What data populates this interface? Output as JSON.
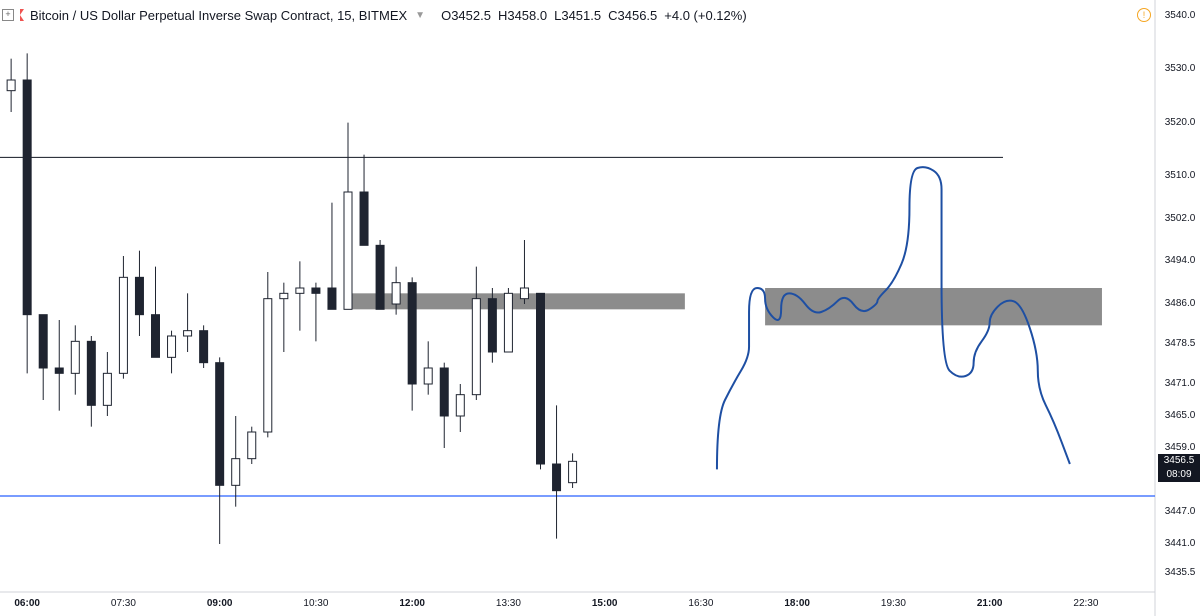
{
  "header": {
    "expand_icon": "plus-square-icon",
    "flag_icon": "red-flag-icon",
    "title": "Bitcoin / US Dollar Perpetual Inverse Swap Contract, 15, BITMEX",
    "dropdown_icon": "chevron-down-icon",
    "open": "O3452.5",
    "high": "H3458.0",
    "low": "L3451.5",
    "close": "C3456.5",
    "change": "+4.0 (+0.12%)",
    "alert_icon": "warning-circle-icon",
    "alert_text": "!"
  },
  "price_axis": {
    "labels": [
      "3540.0",
      "3530.0",
      "3520.0",
      "3510.0",
      "3502.0",
      "3494.0",
      "3486.0",
      "3478.5",
      "3471.0",
      "3465.0",
      "3459.0",
      "3447.0",
      "3441.0",
      "3435.5"
    ],
    "current_price": "3456.5",
    "countdown": "08:09"
  },
  "time_axis": {
    "labels": [
      "06:00",
      "07:30",
      "09:00",
      "10:30",
      "12:00",
      "13:30",
      "15:00",
      "16:30",
      "18:00",
      "19:30",
      "21:00",
      "22:30"
    ],
    "bold": [
      "06:00",
      "09:00",
      "12:00",
      "15:00",
      "18:00",
      "21:00"
    ]
  },
  "colors": {
    "bear": "#1f2430",
    "bull": "#ffffff",
    "wick": "#1f2430",
    "support_line": "#2962ff",
    "resistance_line": "#131722",
    "zone": "#8c8c8c",
    "drawing": "#1e4fa3",
    "accent": "#ef5350"
  },
  "chart_data": {
    "type": "candlestick",
    "symbol": "BITMEX XBTUSD",
    "interval": "15",
    "y_range": [
      3432,
      3543
    ],
    "x_range": [
      "05:00",
      "23:00"
    ],
    "candles": [
      {
        "t": "05:45",
        "o": 3526,
        "h": 3532,
        "l": 3522,
        "c": 3528
      },
      {
        "t": "06:00",
        "o": 3528,
        "h": 3533,
        "l": 3473,
        "c": 3484
      },
      {
        "t": "06:15",
        "o": 3484,
        "h": 3484,
        "l": 3468,
        "c": 3474
      },
      {
        "t": "06:30",
        "o": 3474,
        "h": 3483,
        "l": 3466,
        "c": 3473
      },
      {
        "t": "06:45",
        "o": 3473,
        "h": 3482,
        "l": 3469,
        "c": 3479
      },
      {
        "t": "07:00",
        "o": 3479,
        "h": 3480,
        "l": 3463,
        "c": 3467
      },
      {
        "t": "07:15",
        "o": 3467,
        "h": 3477,
        "l": 3465,
        "c": 3473
      },
      {
        "t": "07:30",
        "o": 3473,
        "h": 3495,
        "l": 3472,
        "c": 3491
      },
      {
        "t": "07:45",
        "o": 3491,
        "h": 3496,
        "l": 3480,
        "c": 3484
      },
      {
        "t": "08:00",
        "o": 3484,
        "h": 3493,
        "l": 3476,
        "c": 3476
      },
      {
        "t": "08:15",
        "o": 3476,
        "h": 3481,
        "l": 3473,
        "c": 3480
      },
      {
        "t": "08:30",
        "o": 3480,
        "h": 3488,
        "l": 3477,
        "c": 3481
      },
      {
        "t": "08:45",
        "o": 3481,
        "h": 3482,
        "l": 3474,
        "c": 3475
      },
      {
        "t": "09:00",
        "o": 3475,
        "h": 3476,
        "l": 3441,
        "c": 3452
      },
      {
        "t": "09:15",
        "o": 3452,
        "h": 3465,
        "l": 3448,
        "c": 3457
      },
      {
        "t": "09:30",
        "o": 3457,
        "h": 3463,
        "l": 3456,
        "c": 3462
      },
      {
        "t": "09:45",
        "o": 3462,
        "h": 3492,
        "l": 3461,
        "c": 3487
      },
      {
        "t": "10:00",
        "o": 3487,
        "h": 3490,
        "l": 3477,
        "c": 3488
      },
      {
        "t": "10:15",
        "o": 3488,
        "h": 3494,
        "l": 3481,
        "c": 3489
      },
      {
        "t": "10:30",
        "o": 3489,
        "h": 3490,
        "l": 3479,
        "c": 3488
      },
      {
        "t": "10:45",
        "o": 3489,
        "h": 3505,
        "l": 3485,
        "c": 3485
      },
      {
        "t": "11:00",
        "o": 3485,
        "h": 3520,
        "l": 3485,
        "c": 3507
      },
      {
        "t": "11:15",
        "o": 3507,
        "h": 3514,
        "l": 3497,
        "c": 3497
      },
      {
        "t": "11:30",
        "o": 3497,
        "h": 3498,
        "l": 3485,
        "c": 3485
      },
      {
        "t": "11:45",
        "o": 3486,
        "h": 3493,
        "l": 3484,
        "c": 3490
      },
      {
        "t": "12:00",
        "o": 3490,
        "h": 3491,
        "l": 3466,
        "c": 3471
      },
      {
        "t": "12:15",
        "o": 3471,
        "h": 3479,
        "l": 3469,
        "c": 3474
      },
      {
        "t": "12:30",
        "o": 3474,
        "h": 3475,
        "l": 3459,
        "c": 3465
      },
      {
        "t": "12:45",
        "o": 3465,
        "h": 3471,
        "l": 3462,
        "c": 3469
      },
      {
        "t": "13:00",
        "o": 3469,
        "h": 3493,
        "l": 3468,
        "c": 3487
      },
      {
        "t": "13:15",
        "o": 3487,
        "h": 3489,
        "l": 3475,
        "c": 3477
      },
      {
        "t": "13:30",
        "o": 3477,
        "h": 3489,
        "l": 3477,
        "c": 3488
      },
      {
        "t": "13:45",
        "o": 3487,
        "h": 3498,
        "l": 3486,
        "c": 3489
      },
      {
        "t": "14:00",
        "o": 3488,
        "h": 3488,
        "l": 3455,
        "c": 3456
      },
      {
        "t": "14:15",
        "o": 3456,
        "h": 3467,
        "l": 3442,
        "c": 3451
      },
      {
        "t": "14:30",
        "o": 3452.5,
        "h": 3458,
        "l": 3451.5,
        "c": 3456.5
      }
    ],
    "resistance_level": 3513.5,
    "support_level": 3450,
    "zone_left": {
      "from": "11:00",
      "to": "16:15",
      "top": 3488,
      "bottom": 3485
    },
    "zone_right": {
      "from": "17:30",
      "to": "22:45",
      "top": 3489,
      "bottom": 3482
    },
    "projection_path": [
      [
        "16:45",
        3455
      ],
      [
        "16:45",
        3465
      ],
      [
        "17:00",
        3471
      ],
      [
        "17:15",
        3476
      ],
      [
        "17:15",
        3480
      ],
      [
        "17:15",
        3489
      ],
      [
        "17:30",
        3489
      ],
      [
        "17:30",
        3485
      ],
      [
        "17:45",
        3482
      ],
      [
        "17:45",
        3488
      ],
      [
        "18:00",
        3488
      ],
      [
        "18:15",
        3484
      ],
      [
        "18:30",
        3485
      ],
      [
        "18:45",
        3488
      ],
      [
        "19:00",
        3484
      ],
      [
        "19:15",
        3486
      ],
      [
        "19:15",
        3487
      ],
      [
        "19:30",
        3490
      ],
      [
        "19:45",
        3497
      ],
      [
        "19:45",
        3511
      ],
      [
        "20:00",
        3512
      ],
      [
        "20:15",
        3510
      ],
      [
        "20:15",
        3505
      ],
      [
        "20:15",
        3475
      ],
      [
        "20:30",
        3472
      ],
      [
        "20:45",
        3473
      ],
      [
        "20:45",
        3477
      ],
      [
        "21:00",
        3481
      ],
      [
        "21:00",
        3484
      ],
      [
        "21:15",
        3487
      ],
      [
        "21:30",
        3486
      ],
      [
        "21:45",
        3477
      ],
      [
        "21:45",
        3470
      ],
      [
        "22:00",
        3464
      ],
      [
        "22:15",
        3456
      ]
    ]
  }
}
